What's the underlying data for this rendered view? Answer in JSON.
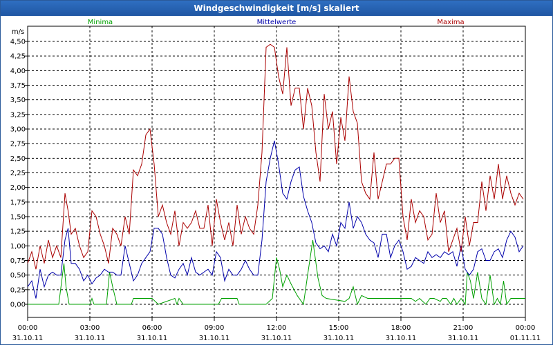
{
  "window": {
    "title": "Windgeschwindigkeit [m/s] skaliert"
  },
  "chart_data": {
    "type": "line",
    "title": "Windgeschwindigkeit [m/s] skaliert",
    "ylabel": "m/s",
    "ylim": [
      0,
      4.5
    ],
    "y_ticks": [
      "0,00",
      "0,25",
      "0,50",
      "0,75",
      "1,00",
      "1,25",
      "1,50",
      "1,75",
      "2,00",
      "2,25",
      "2,50",
      "2,75",
      "3,00",
      "3,25",
      "3,50",
      "3,75",
      "4,00",
      "4,25",
      "4,50"
    ],
    "x_ticks": [
      {
        "time": "00:00",
        "date": "31.10.11"
      },
      {
        "time": "03:00",
        "date": "31.10.11"
      },
      {
        "time": "06:00",
        "date": "31.10.11"
      },
      {
        "time": "09:00",
        "date": "31.10.11"
      },
      {
        "time": "12:00",
        "date": "31.10.11"
      },
      {
        "time": "15:00",
        "date": "31.10.11"
      },
      {
        "time": "18:00",
        "date": "31.10.11"
      },
      {
        "time": "21:00",
        "date": "31.10.11"
      },
      {
        "time": "00:00",
        "date": "01.11.11"
      }
    ],
    "x_hours_range": [
      0,
      24
    ],
    "series": [
      {
        "name": "Minima",
        "color": "#00a000",
        "hours": [
          0,
          1.5,
          1.75,
          1.85,
          2.0,
          3.0,
          3.1,
          3.2,
          3.8,
          3.95,
          4.1,
          4.3,
          5.0,
          5.1,
          5.8,
          6.0,
          6.3,
          7.1,
          7.2,
          7.3,
          7.5,
          7.6,
          9.2,
          9.35,
          10.1,
          10.2,
          11.4,
          11.5,
          11.8,
          12.0,
          12.15,
          12.3,
          12.5,
          12.7,
          13.0,
          13.3,
          13.5,
          13.75,
          14.0,
          14.2,
          14.4,
          15.3,
          15.5,
          15.7,
          15.9,
          16.1,
          16.4,
          18.3,
          18.5,
          18.7,
          18.9,
          19.2,
          19.4,
          19.6,
          19.9,
          20.0,
          20.2,
          20.4,
          20.55,
          20.7,
          20.9,
          21.1,
          21.2,
          21.35,
          21.5,
          21.7,
          21.9,
          22.1,
          22.3,
          22.5,
          22.65,
          22.8,
          22.95,
          23.1,
          23.3,
          23.5,
          24
        ],
        "values": [
          0,
          0,
          0.7,
          0.3,
          0,
          0,
          0.1,
          0,
          0,
          0.55,
          0.3,
          0,
          0,
          0.1,
          0.1,
          0.1,
          0,
          0.1,
          0,
          0.1,
          0,
          0,
          0,
          0.1,
          0.1,
          0,
          0,
          0,
          0.1,
          0.8,
          0.6,
          0.3,
          0.5,
          0.35,
          0.15,
          0,
          0.5,
          1.1,
          0.45,
          0.15,
          0.1,
          0.05,
          0.1,
          0.3,
          0,
          0.15,
          0.1,
          0.1,
          0.1,
          0.05,
          0.1,
          0,
          0.1,
          0.1,
          0.05,
          0.1,
          0.1,
          0,
          0.1,
          0,
          0.1,
          0,
          0.55,
          0.4,
          0.1,
          0.55,
          0.1,
          0,
          0.5,
          0,
          0.1,
          0,
          0.4,
          0,
          0.1,
          0.1,
          0.1
        ]
      },
      {
        "name": "Mittelwerte",
        "color": "#0000aa",
        "hours": [
          0,
          0.2,
          0.4,
          0.6,
          0.8,
          1.0,
          1.2,
          1.4,
          1.6,
          1.8,
          1.95,
          2.1,
          2.3,
          2.5,
          2.7,
          2.9,
          3.1,
          3.3,
          3.5,
          3.7,
          3.9,
          4.1,
          4.3,
          4.5,
          4.7,
          4.9,
          5.1,
          5.3,
          5.5,
          5.7,
          5.9,
          6.1,
          6.3,
          6.5,
          6.7,
          6.9,
          7.1,
          7.3,
          7.5,
          7.7,
          7.9,
          8.1,
          8.3,
          8.5,
          8.7,
          8.9,
          9.1,
          9.3,
          9.5,
          9.7,
          9.9,
          10.1,
          10.3,
          10.5,
          10.7,
          10.9,
          11.1,
          11.3,
          11.5,
          11.7,
          11.9,
          12.1,
          12.3,
          12.5,
          12.7,
          12.9,
          13.1,
          13.3,
          13.5,
          13.7,
          13.9,
          14.1,
          14.3,
          14.5,
          14.7,
          14.9,
          15.1,
          15.3,
          15.5,
          15.7,
          15.9,
          16.1,
          16.3,
          16.5,
          16.7,
          16.9,
          17.1,
          17.3,
          17.5,
          17.7,
          17.9,
          18.1,
          18.3,
          18.5,
          18.7,
          18.9,
          19.1,
          19.3,
          19.5,
          19.7,
          19.9,
          20.1,
          20.3,
          20.5,
          20.7,
          20.9,
          21.1,
          21.3,
          21.5,
          21.7,
          21.9,
          22.1,
          22.3,
          22.5,
          22.7,
          22.9,
          23.1,
          23.3,
          23.5,
          23.7,
          23.9
        ],
        "values": [
          0.3,
          0.4,
          0.1,
          0.6,
          0.3,
          0.5,
          0.55,
          0.5,
          0.5,
          1.1,
          1.3,
          0.7,
          0.7,
          0.6,
          0.4,
          0.5,
          0.35,
          0.45,
          0.5,
          0.6,
          0.55,
          0.55,
          0.5,
          0.5,
          1.0,
          0.7,
          0.4,
          0.5,
          0.7,
          0.8,
          0.9,
          1.3,
          1.3,
          1.2,
          0.8,
          0.5,
          0.45,
          0.6,
          0.7,
          0.5,
          0.8,
          0.55,
          0.5,
          0.55,
          0.6,
          0.5,
          0.9,
          0.8,
          0.4,
          0.6,
          0.5,
          0.5,
          0.6,
          0.75,
          0.6,
          0.5,
          0.5,
          1.1,
          2.1,
          2.5,
          2.8,
          2.4,
          1.9,
          1.8,
          2.1,
          2.3,
          2.35,
          1.85,
          1.6,
          1.4,
          1.05,
          0.95,
          1.0,
          0.9,
          1.2,
          1.0,
          1.4,
          1.3,
          1.75,
          1.3,
          1.5,
          1.4,
          1.2,
          1.1,
          1.05,
          0.8,
          1.2,
          1.2,
          0.8,
          1.0,
          1.1,
          0.9,
          0.6,
          0.65,
          0.8,
          0.75,
          0.7,
          0.9,
          0.8,
          0.85,
          0.8,
          0.9,
          0.85,
          0.9,
          0.65,
          1.0,
          0.6,
          0.5,
          0.6,
          0.9,
          0.95,
          0.75,
          0.75,
          0.9,
          0.95,
          0.8,
          1.1,
          1.25,
          1.15,
          0.9,
          1.0
        ]
      },
      {
        "name": "Maxima",
        "color": "#aa0000",
        "hours": [
          0,
          0.2,
          0.4,
          0.6,
          0.8,
          1.0,
          1.2,
          1.4,
          1.6,
          1.8,
          1.95,
          2.1,
          2.3,
          2.5,
          2.7,
          2.9,
          3.1,
          3.3,
          3.5,
          3.7,
          3.9,
          4.1,
          4.3,
          4.5,
          4.7,
          4.9,
          5.1,
          5.3,
          5.5,
          5.7,
          5.9,
          6.1,
          6.3,
          6.5,
          6.7,
          6.9,
          7.1,
          7.3,
          7.5,
          7.7,
          7.9,
          8.1,
          8.3,
          8.5,
          8.7,
          8.9,
          9.1,
          9.3,
          9.5,
          9.7,
          9.9,
          10.1,
          10.3,
          10.5,
          10.7,
          10.9,
          11.1,
          11.3,
          11.5,
          11.7,
          11.9,
          12.1,
          12.3,
          12.5,
          12.7,
          12.9,
          13.1,
          13.3,
          13.5,
          13.7,
          13.9,
          14.1,
          14.3,
          14.5,
          14.7,
          14.9,
          15.1,
          15.3,
          15.5,
          15.7,
          15.9,
          16.1,
          16.3,
          16.5,
          16.7,
          16.9,
          17.1,
          17.3,
          17.5,
          17.7,
          17.9,
          18.1,
          18.3,
          18.5,
          18.7,
          18.9,
          19.1,
          19.3,
          19.5,
          19.7,
          19.9,
          20.1,
          20.3,
          20.5,
          20.7,
          20.9,
          21.1,
          21.3,
          21.5,
          21.7,
          21.9,
          22.1,
          22.3,
          22.5,
          22.7,
          22.9,
          23.1,
          23.3,
          23.5,
          23.7,
          23.9
        ],
        "values": [
          0.7,
          0.9,
          0.6,
          1.0,
          0.7,
          1.1,
          0.8,
          1.0,
          0.8,
          1.9,
          1.6,
          1.2,
          1.3,
          1.0,
          0.8,
          0.9,
          1.6,
          1.5,
          1.2,
          1.0,
          0.7,
          1.3,
          1.2,
          1.0,
          1.5,
          1.2,
          2.3,
          2.2,
          2.4,
          2.9,
          3.0,
          2.4,
          1.5,
          1.7,
          1.4,
          1.2,
          1.6,
          1.0,
          1.4,
          1.3,
          1.4,
          1.6,
          1.3,
          1.3,
          1.7,
          1.0,
          1.8,
          1.4,
          1.1,
          1.4,
          1.0,
          1.7,
          1.2,
          1.5,
          1.3,
          1.2,
          1.7,
          2.6,
          4.4,
          4.45,
          4.4,
          3.9,
          3.6,
          4.4,
          3.4,
          3.7,
          3.7,
          3.0,
          3.7,
          3.4,
          2.6,
          2.1,
          3.6,
          3.0,
          3.3,
          2.4,
          3.2,
          2.8,
          3.9,
          3.3,
          3.1,
          2.1,
          1.9,
          1.8,
          2.6,
          1.8,
          2.1,
          2.4,
          2.4,
          2.5,
          2.5,
          1.5,
          1.1,
          1.8,
          1.4,
          1.6,
          1.5,
          1.1,
          1.2,
          1.9,
          1.4,
          1.6,
          0.9,
          1.1,
          1.3,
          0.9,
          1.5,
          1.0,
          1.4,
          1.4,
          2.1,
          1.6,
          2.2,
          1.8,
          2.4,
          1.8,
          2.2,
          1.9,
          1.7,
          1.9,
          1.8
        ]
      }
    ]
  }
}
